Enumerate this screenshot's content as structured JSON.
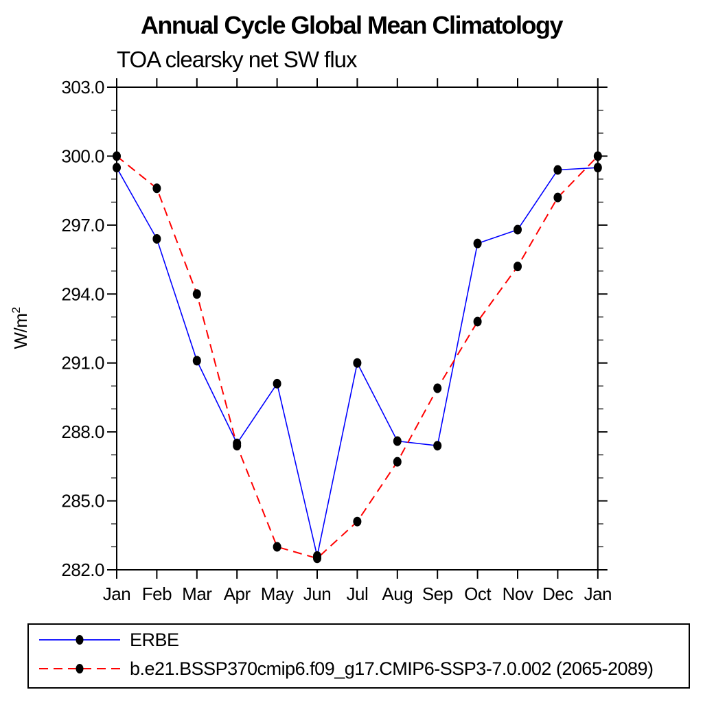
{
  "page": {
    "background": "#ffffff",
    "axis_color": "#000000"
  },
  "chart_data": {
    "type": "line",
    "title": "Annual Cycle Global Mean Climatology",
    "subtitle": "TOA clearsky net SW flux",
    "ylabel_base": "W/m",
    "ylabel_exp": "2",
    "x_categories": [
      "Jan",
      "Feb",
      "Mar",
      "Apr",
      "May",
      "Jun",
      "Jul",
      "Aug",
      "Sep",
      "Oct",
      "Nov",
      "Dec",
      "Jan"
    ],
    "ylim": [
      282,
      303
    ],
    "ytick_values": [
      303,
      300,
      297,
      294,
      291,
      288,
      285,
      282
    ],
    "ytick_labels": [
      "303.0",
      "300.0",
      "297.0",
      "294.0",
      "291.0",
      "288.0",
      "285.0",
      "282.0"
    ],
    "ytick_minor_step": 1,
    "grid": "off",
    "legend_position": "bottom",
    "marker": "filled-circle",
    "marker_color": "#000000",
    "series": [
      {
        "name": "ERBE",
        "color": "#0000ff",
        "line_style": "solid",
        "values": [
          299.5,
          296.4,
          291.1,
          287.5,
          290.1,
          282.6,
          291.0,
          287.6,
          287.4,
          296.2,
          296.8,
          299.4,
          299.5
        ]
      },
      {
        "name": "b.e21.BSSP370cmip6.f09_g17.CMIP6-SSP3-7.0.002 (2065-2089)",
        "color": "#ff0000",
        "line_style": "dashed",
        "values": [
          300.0,
          298.6,
          294.0,
          287.4,
          283.0,
          282.5,
          284.1,
          286.7,
          289.9,
          292.8,
          295.2,
          298.2,
          300.0
        ]
      }
    ]
  }
}
